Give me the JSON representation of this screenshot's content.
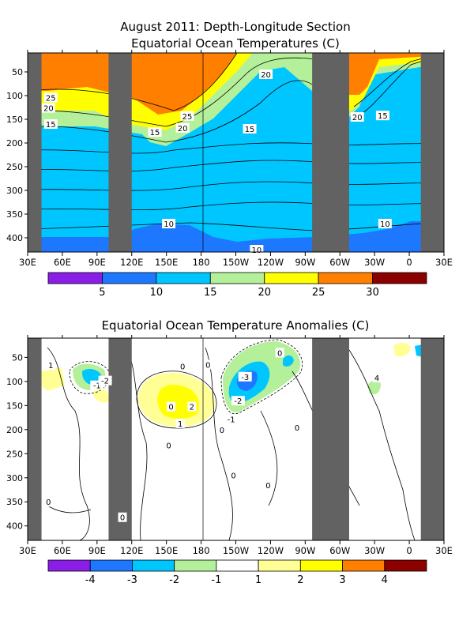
{
  "figure": {
    "title_line1": "August 2011: Depth-Longitude Section",
    "title_line2": "Equatorial Ocean Temperatures (C)",
    "title_anomaly": "Equatorial Ocean Temperature Anomalies (C)"
  },
  "colors": {
    "land": "#626262",
    "purple": "#8a1ee6",
    "blue": "#1e78ff",
    "cyan": "#00c6ff",
    "lightgreen": "#b4f09a",
    "yellow": "#ffff00",
    "lightyellow": "#ffff96",
    "orange": "#ff7f00",
    "darkred": "#8c0000",
    "white": "#ffffff"
  },
  "chart_data": [
    {
      "type": "heatmap",
      "subtype": "filled-contour",
      "title": "Equatorial Ocean Temperatures (C)",
      "x_ticks": [
        "30E",
        "60E",
        "90E",
        "120E",
        "150E",
        "180",
        "150W",
        "120W",
        "90W",
        "60W",
        "30W",
        "0",
        "30E"
      ],
      "y_ticks": [
        50,
        100,
        150,
        200,
        250,
        300,
        350,
        400
      ],
      "xlim": [
        "30E",
        "30E"
      ],
      "ylim": [
        430,
        10
      ],
      "land_segments": [
        [
          "30E",
          "42E"
        ],
        [
          "100E",
          "120E"
        ],
        [
          "84W",
          "52W"
        ],
        [
          "10E",
          "30E"
        ]
      ],
      "colorbar": {
        "levels": [
          "5",
          "10",
          "15",
          "20",
          "25",
          "30"
        ],
        "colors": [
          "purple",
          "blue",
          "cyan",
          "lightgreen",
          "yellow",
          "orange",
          "darkred"
        ]
      },
      "contour_labels": [
        {
          "text": "25",
          "lon": 50,
          "depth": 104
        },
        {
          "text": "20",
          "lon": 48,
          "depth": 126
        },
        {
          "text": "15",
          "lon": 50,
          "depth": 160
        },
        {
          "text": "20",
          "lon": 236,
          "depth": 55
        },
        {
          "text": "25",
          "lon": 168,
          "depth": 143
        },
        {
          "text": "20",
          "lon": 164,
          "depth": 168
        },
        {
          "text": "15",
          "lon": 140,
          "depth": 177
        },
        {
          "text": "15",
          "lon": 222,
          "depth": 170
        },
        {
          "text": "20",
          "lon": 315,
          "depth": 145
        },
        {
          "text": "15",
          "lon": 337,
          "depth": 142
        },
        {
          "text": "10",
          "lon": 152,
          "depth": 370
        },
        {
          "text": "10",
          "lon": 339,
          "depth": 370
        },
        {
          "text": "10",
          "lon": 228,
          "depth": 425
        }
      ]
    },
    {
      "type": "heatmap",
      "subtype": "filled-contour",
      "title": "Equatorial Ocean Temperature Anomalies (C)",
      "x_ticks": [
        "30E",
        "60E",
        "90E",
        "120E",
        "150E",
        "180",
        "150W",
        "120W",
        "90W",
        "60W",
        "30W",
        "0",
        "30E"
      ],
      "y_ticks": [
        50,
        100,
        150,
        200,
        250,
        300,
        350,
        400
      ],
      "xlim": [
        "30E",
        "30E"
      ],
      "ylim": [
        430,
        10
      ],
      "land_segments": [
        [
          "30E",
          "42E"
        ],
        [
          "100E",
          "120E"
        ],
        [
          "84W",
          "52W"
        ],
        [
          "10E",
          "30E"
        ]
      ],
      "colorbar": {
        "levels": [
          "-4",
          "-3",
          "-2",
          "-1",
          "1",
          "2",
          "3",
          "4"
        ],
        "colors": [
          "purple",
          "blue",
          "cyan",
          "lightgreen",
          "white",
          "lightyellow",
          "yellow",
          "orange",
          "darkred"
        ]
      },
      "contour_labels": [
        {
          "text": "1",
          "lon": 50,
          "depth": 66
        },
        {
          "text": "-1",
          "lon": 90,
          "depth": 108
        },
        {
          "text": "-2",
          "lon": 97,
          "depth": 98
        },
        {
          "text": "0",
          "lon": 164,
          "depth": 68
        },
        {
          "text": "0",
          "lon": 186,
          "depth": 65
        },
        {
          "text": "2",
          "lon": 172,
          "depth": 152
        },
        {
          "text": "1",
          "lon": 162,
          "depth": 187
        },
        {
          "text": "0",
          "lon": 154,
          "depth": 152
        },
        {
          "text": "0",
          "lon": 152,
          "depth": 232
        },
        {
          "text": "-3",
          "lon": 218,
          "depth": 90
        },
        {
          "text": "-2",
          "lon": 212,
          "depth": 140
        },
        {
          "text": "-1",
          "lon": 206,
          "depth": 178
        },
        {
          "text": "0",
          "lon": 198,
          "depth": 200
        },
        {
          "text": "0",
          "lon": 208,
          "depth": 295
        },
        {
          "text": "0",
          "lon": 238,
          "depth": 315
        },
        {
          "text": "0",
          "lon": 263,
          "depth": 195
        },
        {
          "text": "0",
          "lon": 248,
          "depth": 40
        },
        {
          "text": "4",
          "lon": 332,
          "depth": 92
        },
        {
          "text": "0",
          "lon": 48,
          "depth": 350
        },
        {
          "text": "0",
          "lon": 112,
          "depth": 382
        }
      ]
    }
  ]
}
